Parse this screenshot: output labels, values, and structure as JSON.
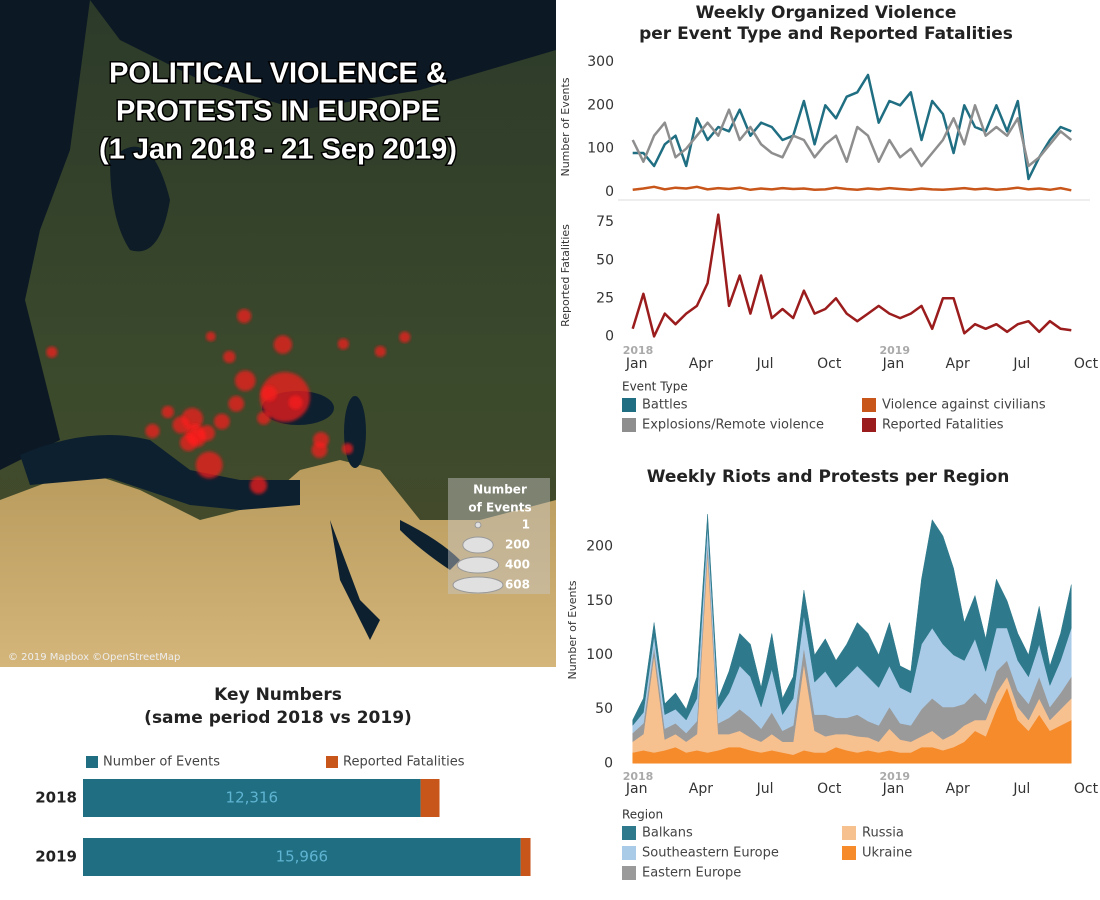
{
  "chart_data": [
    {
      "type": "map",
      "title": [
        "POLITICAL VIOLENCE &",
        "PROTESTS IN EUROPE",
        "(1 Jan 2018 - 21 Sep 2019)"
      ],
      "attribution": "© 2019 Mapbox ©OpenStreetMap",
      "color": "#ff1a1a",
      "points": [
        {
          "lon": 38,
          "lat": 48,
          "events": 608
        },
        {
          "lon": 37.6,
          "lat": 55.7,
          "events": 60
        },
        {
          "lon": 30.5,
          "lat": 50.4,
          "events": 80
        },
        {
          "lon": 20.5,
          "lat": 44.8,
          "events": 90
        },
        {
          "lon": 21,
          "lat": 42.6,
          "events": 70
        },
        {
          "lon": 23.7,
          "lat": 38,
          "events": 150
        },
        {
          "lon": 21.4,
          "lat": 42,
          "events": 60
        },
        {
          "lon": 19.8,
          "lat": 41.3,
          "events": 50
        },
        {
          "lon": 23.3,
          "lat": 42.7,
          "events": 40
        },
        {
          "lon": 26.1,
          "lat": 44.4,
          "events": 40
        },
        {
          "lon": 28.8,
          "lat": 47,
          "events": 40
        },
        {
          "lon": 18.4,
          "lat": 43.9,
          "events": 50
        },
        {
          "lon": 15.9,
          "lat": 45.8,
          "events": 20
        },
        {
          "lon": 13,
          "lat": 43,
          "events": 30
        },
        {
          "lon": 33,
          "lat": 35,
          "events": 50
        },
        {
          "lon": 44.5,
          "lat": 40.2,
          "events": 40
        },
        {
          "lon": 44.8,
          "lat": 41.7,
          "events": 40
        },
        {
          "lon": 49.8,
          "lat": 40.4,
          "events": 15
        },
        {
          "lon": 30.3,
          "lat": 59.9,
          "events": 30
        },
        {
          "lon": 24,
          "lat": 56.9,
          "events": 10
        },
        {
          "lon": 27.5,
          "lat": 53.9,
          "events": 20
        },
        {
          "lon": 40,
          "lat": 47.2,
          "events": 30
        },
        {
          "lon": 56,
          "lat": 54.7,
          "events": 15
        },
        {
          "lon": 49,
          "lat": 55.8,
          "events": 15
        },
        {
          "lon": 60.6,
          "lat": 56.8,
          "events": 15
        },
        {
          "lon": -6,
          "lat": 54.6,
          "events": 15
        },
        {
          "lon": 34,
          "lat": 44.9,
          "events": 25
        },
        {
          "lon": 35,
          "lat": 48.5,
          "events": 40
        }
      ],
      "size_legend": {
        "title": [
          "Number",
          "of Events"
        ],
        "values": [
          1,
          200,
          400,
          608
        ]
      }
    },
    {
      "type": "line",
      "title": [
        "Weekly Organized Violence",
        "per Event Type and Reported Fatalities"
      ],
      "x": [
        0,
        0.5,
        1,
        1.5,
        2,
        2.5,
        3,
        3.5,
        4,
        4.5,
        5,
        5.5,
        6,
        6.5,
        7,
        7.5,
        8,
        8.5,
        9,
        9.5,
        10,
        10.5,
        11,
        11.5,
        12,
        12.5,
        13,
        13.5,
        14,
        14.5,
        15,
        15.5,
        16,
        16.5,
        17,
        17.5,
        18,
        18.5,
        19,
        19.5,
        20,
        20.5
      ],
      "xlim": [
        -0.5,
        21
      ],
      "xticks": [
        {
          "value": 0,
          "label": "Jan"
        },
        {
          "value": 3,
          "label": "Apr"
        },
        {
          "value": 6,
          "label": "Jul"
        },
        {
          "value": 9,
          "label": "Oct"
        },
        {
          "value": 12,
          "label": "Jan"
        },
        {
          "value": 15,
          "label": "Apr"
        },
        {
          "value": 18,
          "label": "Jul"
        },
        {
          "value": 21,
          "label": "Oct"
        }
      ],
      "year_labels": [
        {
          "value": 0,
          "label": "2018"
        },
        {
          "value": 12,
          "label": "2019"
        }
      ],
      "legend_title": "Event Type",
      "panels": [
        {
          "ylabel": "Number of Events",
          "ylim": [
            0,
            300
          ],
          "yticks": [
            0,
            100,
            200,
            300
          ],
          "series": [
            {
              "name": "Battles",
              "color": "#1f6e82",
              "values": [
                90,
                90,
                60,
                110,
                130,
                60,
                170,
                120,
                150,
                140,
                190,
                130,
                160,
                150,
                120,
                130,
                210,
                110,
                200,
                170,
                220,
                230,
                270,
                160,
                210,
                200,
                230,
                120,
                210,
                180,
                90,
                200,
                150,
                140,
                200,
                140,
                210,
                30,
                80,
                120,
                150,
                140
              ]
            },
            {
              "name": "Explosions/Remote violence",
              "color": "#8e8e8e",
              "values": [
                120,
                70,
                130,
                160,
                80,
                100,
                130,
                160,
                130,
                190,
                120,
                150,
                110,
                90,
                80,
                130,
                120,
                80,
                110,
                130,
                70,
                150,
                130,
                70,
                120,
                80,
                100,
                60,
                90,
                120,
                170,
                110,
                200,
                130,
                150,
                130,
                170,
                60,
                80,
                110,
                140,
                120
              ]
            },
            {
              "name": "Violence against civilians",
              "color": "#c8561a",
              "values": [
                5,
                8,
                12,
                6,
                10,
                8,
                12,
                6,
                9,
                7,
                10,
                5,
                8,
                6,
                9,
                7,
                8,
                5,
                6,
                10,
                7,
                5,
                8,
                6,
                9,
                7,
                5,
                8,
                6,
                5,
                7,
                9,
                6,
                8,
                5,
                7,
                10,
                6,
                8,
                5,
                9,
                4
              ]
            }
          ]
        },
        {
          "ylabel": "Reported Fatalities",
          "ylim": [
            -5,
            85
          ],
          "yticks": [
            0,
            25,
            50,
            75
          ],
          "series": [
            {
              "name": "Reported Fatalities",
              "color": "#9b1c1c",
              "values": [
                5,
                28,
                0,
                15,
                8,
                15,
                20,
                35,
                80,
                20,
                40,
                15,
                40,
                12,
                18,
                12,
                30,
                15,
                18,
                25,
                15,
                10,
                15,
                20,
                15,
                12,
                15,
                20,
                5,
                25,
                25,
                2,
                8,
                5,
                8,
                3,
                8,
                10,
                3,
                10,
                5,
                4
              ]
            }
          ]
        }
      ]
    },
    {
      "type": "area",
      "title": "Weekly Riots and Protests per Region",
      "ylabel": "Number of Events",
      "x": [
        0,
        0.5,
        1,
        1.5,
        2,
        2.5,
        3,
        3.5,
        4,
        4.5,
        5,
        5.5,
        6,
        6.5,
        7,
        7.5,
        8,
        8.5,
        9,
        9.5,
        10,
        10.5,
        11,
        11.5,
        12,
        12.5,
        13,
        13.5,
        14,
        14.5,
        15,
        15.5,
        16,
        16.5,
        17,
        17.5,
        18,
        18.5,
        19,
        19.5,
        20,
        20.5
      ],
      "xlim": [
        -0.5,
        21
      ],
      "xticks": [
        {
          "value": 0,
          "label": "Jan"
        },
        {
          "value": 3,
          "label": "Apr"
        },
        {
          "value": 6,
          "label": "Jul"
        },
        {
          "value": 9,
          "label": "Oct"
        },
        {
          "value": 12,
          "label": "Jan"
        },
        {
          "value": 15,
          "label": "Apr"
        },
        {
          "value": 18,
          "label": "Jul"
        },
        {
          "value": 21,
          "label": "Oct"
        }
      ],
      "year_labels": [
        {
          "value": 0,
          "label": "2018"
        },
        {
          "value": 12,
          "label": "2019"
        }
      ],
      "ylim": [
        -8,
        245
      ],
      "yticks": [
        0,
        50,
        100,
        150,
        200
      ],
      "legend_title": "Region",
      "series": [
        {
          "name": "Balkans",
          "color": "#2e7a8c",
          "values": [
            5,
            13,
            12,
            10,
            15,
            10,
            20,
            10,
            10,
            20,
            30,
            30,
            18,
            33,
            15,
            20,
            23,
            25,
            30,
            25,
            30,
            40,
            40,
            30,
            40,
            20,
            20,
            60,
            100,
            100,
            80,
            35,
            40,
            30,
            45,
            25,
            25,
            20,
            35,
            18,
            25,
            40
          ]
        },
        {
          "name": "Southeastern Europe",
          "color": "#a9cbe8",
          "values": [
            7,
            10,
            10,
            13,
            13,
            12,
            21,
            15,
            13,
            23,
            40,
            38,
            20,
            40,
            15,
            25,
            30,
            30,
            40,
            28,
            38,
            45,
            41,
            35,
            38,
            33,
            30,
            60,
            65,
            58,
            48,
            40,
            50,
            30,
            40,
            30,
            28,
            25,
            30,
            20,
            30,
            45
          ]
        },
        {
          "name": "Eastern Europe",
          "color": "#9a9a9a",
          "values": [
            8,
            10,
            8,
            10,
            10,
            8,
            12,
            10,
            10,
            15,
            20,
            18,
            12,
            20,
            10,
            15,
            15,
            15,
            20,
            15,
            15,
            20,
            15,
            15,
            20,
            15,
            15,
            25,
            30,
            30,
            25,
            20,
            25,
            15,
            20,
            15,
            15,
            15,
            20,
            12,
            15,
            20
          ]
        },
        {
          "name": "Russia",
          "color": "#f7c08f",
          "values": [
            10,
            15,
            90,
            10,
            12,
            10,
            15,
            185,
            15,
            12,
            15,
            12,
            10,
            15,
            10,
            12,
            80,
            20,
            15,
            12,
            15,
            15,
            12,
            10,
            20,
            12,
            10,
            10,
            15,
            10,
            12,
            15,
            10,
            15,
            15,
            10,
            12,
            10,
            15,
            10,
            15,
            20
          ]
        },
        {
          "name": "Ukraine",
          "color": "#f58b2a",
          "values": [
            10,
            12,
            10,
            12,
            15,
            10,
            12,
            10,
            12,
            15,
            15,
            12,
            10,
            12,
            10,
            8,
            12,
            10,
            10,
            15,
            12,
            10,
            12,
            10,
            12,
            10,
            10,
            15,
            15,
            12,
            15,
            20,
            30,
            25,
            50,
            70,
            40,
            30,
            45,
            30,
            35,
            40
          ]
        }
      ]
    },
    {
      "type": "bar",
      "title": [
        "Key Numbers",
        "(same period 2018 vs 2019)"
      ],
      "categories": [
        "2018",
        "2019"
      ],
      "xlim": [
        0,
        17000
      ],
      "series": [
        {
          "name": "Number of Events",
          "color": "#1f6e82",
          "values": [
            12316,
            15966
          ],
          "value_labels": [
            "12,316",
            "15,966"
          ]
        },
        {
          "name": "Reported Fatalities",
          "color": "#c8561a",
          "values": [
            690,
            360
          ]
        }
      ]
    }
  ]
}
